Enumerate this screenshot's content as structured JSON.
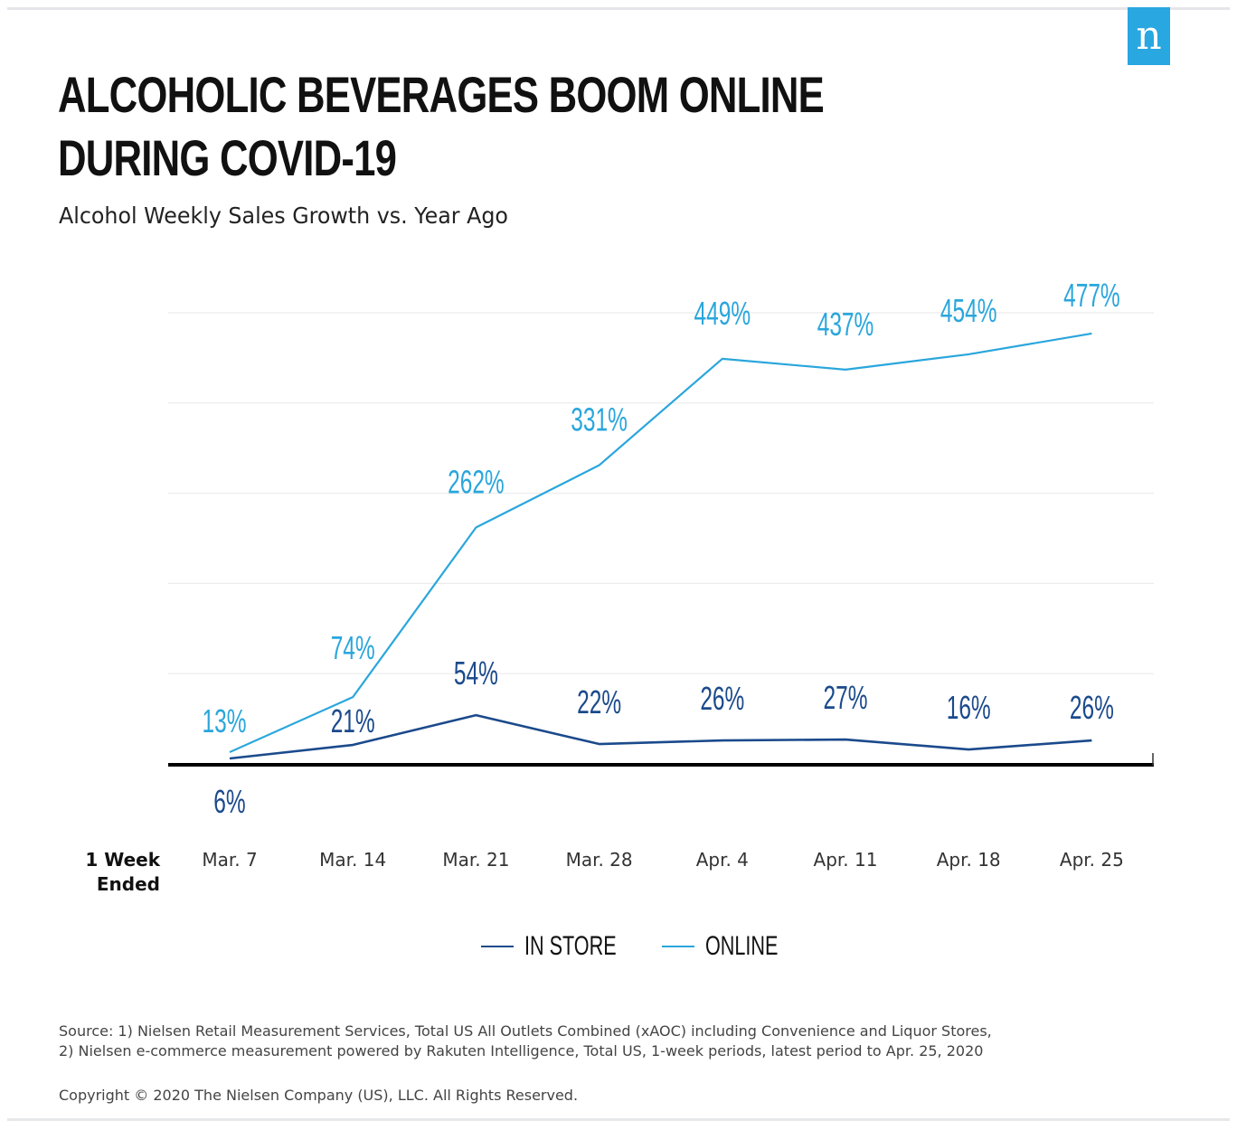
{
  "brand": {
    "logo_letter": "n",
    "logo_color": "#29a7e1"
  },
  "header": {
    "title_line1": "ALCOHOLIC BEVERAGES BOOM ONLINE",
    "title_line2": "DURING COVID-19",
    "subtitle": "Alcohol Weekly Sales Growth vs. Year Ago"
  },
  "chart_data": {
    "type": "line",
    "title": "ALCOHOLIC BEVERAGES BOOM ONLINE DURING COVID-19",
    "subtitle": "Alcohol Weekly Sales Growth vs. Year Ago",
    "xlabel": "1 Week Ended",
    "ylabel": "",
    "categories": [
      "Mar. 7",
      "Mar. 14",
      "Mar. 21",
      "Mar. 28",
      "Apr. 4",
      "Apr. 11",
      "Apr. 18",
      "Apr. 25"
    ],
    "series": [
      {
        "name": "IN STORE",
        "color": "#1b4a8c",
        "values": [
          6,
          21,
          54,
          22,
          26,
          27,
          16,
          26
        ],
        "labels": [
          "6%",
          "21%",
          "54%",
          "22%",
          "26%",
          "27%",
          "16%",
          "26%"
        ]
      },
      {
        "name": "ONLINE",
        "color": "#2aa6dc",
        "values": [
          13,
          74,
          262,
          331,
          449,
          437,
          454,
          477
        ],
        "labels": [
          "13%",
          "74%",
          "262%",
          "331%",
          "449%",
          "437%",
          "454%",
          "477%"
        ]
      }
    ],
    "ylim": [
      0,
      500
    ],
    "gridlines": [
      100,
      200,
      300,
      400,
      500
    ],
    "grid": true,
    "legend_position": "bottom-center"
  },
  "xaxis": {
    "title_line1": "1 Week",
    "title_line2": "Ended"
  },
  "footer": {
    "source_line1": "Source: 1) Nielsen Retail Measurement Services, Total US All Outlets Combined (xAOC) including Convenience and Liquor Stores,",
    "source_line2": "2) Nielsen e-commerce measurement powered by Rakuten Intelligence, Total US, 1-week periods, latest period to Apr. 25, 2020",
    "copyright": "Copyright © 2020 The Nielsen Company (US), LLC. All Rights Reserved."
  }
}
